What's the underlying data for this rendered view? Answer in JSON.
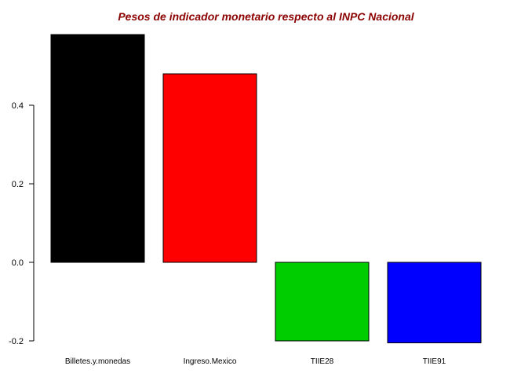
{
  "chart_data": {
    "type": "bar",
    "title": "Pesos de indicador monetario respecto al INPC Nacional",
    "title_color": "#8b0000",
    "categories": [
      "Billetes.y.monedas",
      "Ingreso.Mexico",
      "TIIE28",
      "TIIE91"
    ],
    "values": [
      0.58,
      0.48,
      -0.2,
      -0.205
    ],
    "colors": [
      "#000000",
      "#ff0000",
      "#00cd00",
      "#0000ff"
    ],
    "y_ticks": [
      -0.2,
      0.0,
      0.2,
      0.4
    ],
    "y_tick_labels": [
      "-0.2",
      "0.0",
      "0.2",
      "0.4"
    ],
    "xlabel": "",
    "ylabel": "",
    "grid": false
  }
}
